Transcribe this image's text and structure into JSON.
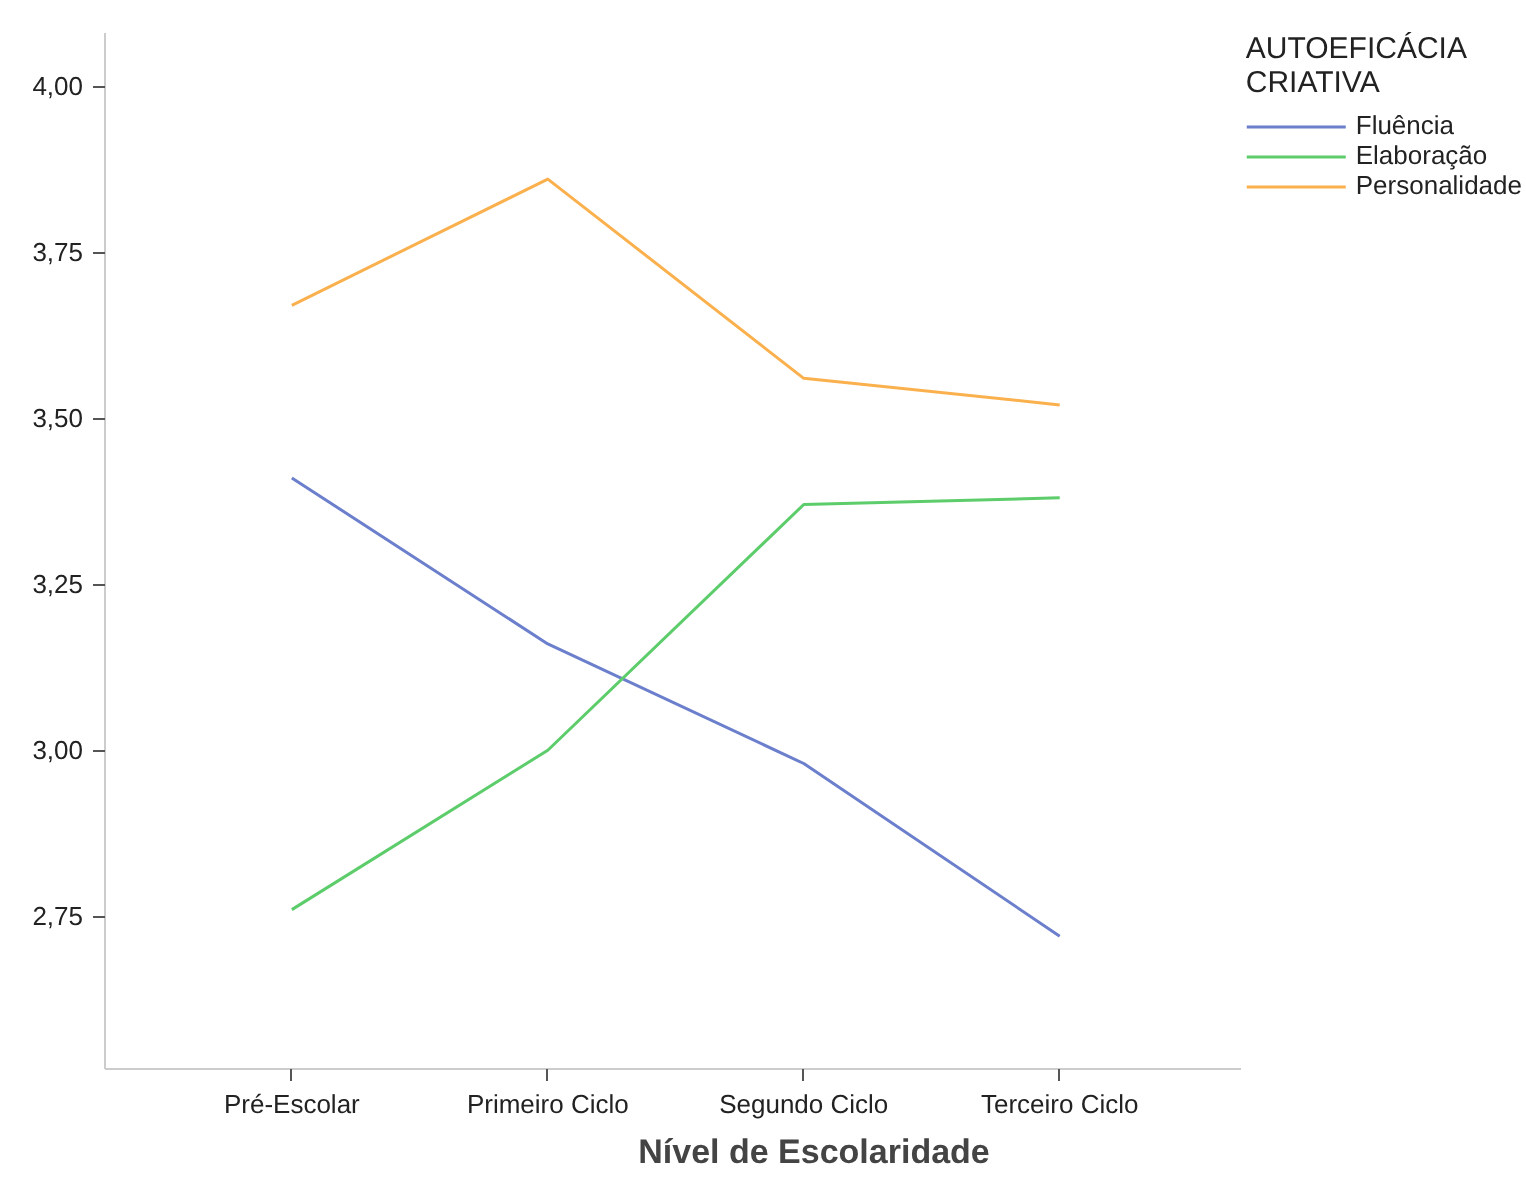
{
  "chart_data": {
    "type": "line",
    "xlabel": "Nível de Escolaridade",
    "legend_title": "AUTOEFICÁCIA CRIATIVA",
    "categories": [
      "Pré-Escolar",
      "Primeiro Ciclo",
      "Segundo Ciclo",
      "Terceiro Ciclo"
    ],
    "series": [
      {
        "name": "Fluência",
        "color": "#6b7fcc",
        "values": [
          3.41,
          3.16,
          2.98,
          2.72
        ]
      },
      {
        "name": "Elaboração",
        "color": "#5ccd6a",
        "values": [
          2.76,
          3.0,
          3.37,
          3.38
        ]
      },
      {
        "name": "Personalidade",
        "color": "#fbb04e",
        "values": [
          3.67,
          3.86,
          3.56,
          3.52
        ]
      }
    ],
    "ylim": [
      2.52,
      4.08
    ],
    "yticks": [
      {
        "value": 2.75,
        "label": "2,75"
      },
      {
        "value": 3.0,
        "label": "3,00"
      },
      {
        "value": 3.25,
        "label": "3,25"
      },
      {
        "value": 3.5,
        "label": "3,50"
      },
      {
        "value": 3.75,
        "label": "3,75"
      },
      {
        "value": 4.0,
        "label": "4,00"
      }
    ],
    "grid": false,
    "legend": "top right",
    "marker": "none",
    "line_style": "solid"
  }
}
